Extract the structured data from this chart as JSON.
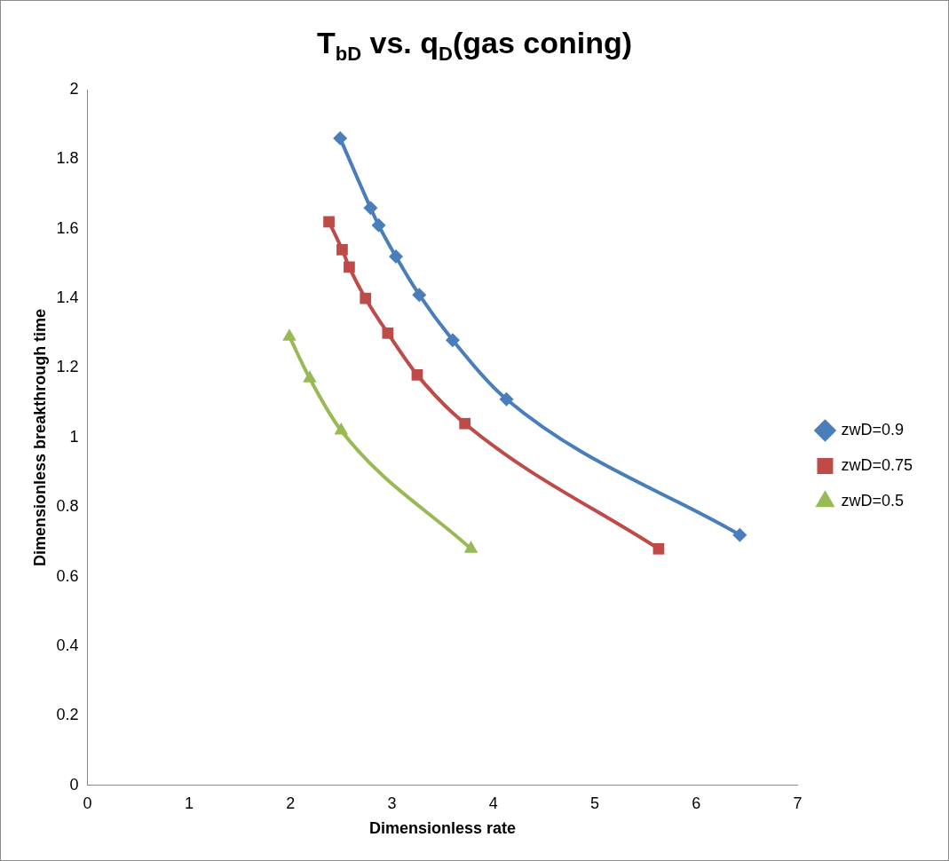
{
  "chart_data": {
    "type": "line",
    "title": "T$_{bD}$ vs. q$_{D}$(gas coning)",
    "xlabel": "Dimensionless rate",
    "ylabel": "Dimensionless breakthrough time",
    "xlim": [
      0,
      7
    ],
    "xticks": [
      0,
      1,
      2,
      3,
      4,
      5,
      6,
      7
    ],
    "ylim": [
      0,
      2
    ],
    "yticks": [
      0,
      0.2,
      0.4,
      0.6,
      0.8,
      1,
      1.2,
      1.4,
      1.6,
      1.8,
      2
    ],
    "grid": false,
    "legend": "right",
    "series": [
      {
        "name": "zwD=0.9",
        "color": "#4a7ebb",
        "marker": "diamond",
        "x": [
          2.49,
          2.79,
          2.87,
          3.04,
          3.27,
          3.6,
          4.13,
          6.43
        ],
        "values": [
          1.86,
          1.66,
          1.61,
          1.52,
          1.41,
          1.28,
          1.11,
          0.72
        ]
      },
      {
        "name": "zwD=0.75",
        "color": "#be4b48",
        "marker": "square",
        "x": [
          2.38,
          2.51,
          2.58,
          2.74,
          2.96,
          3.25,
          3.72,
          5.63
        ],
        "values": [
          1.62,
          1.54,
          1.49,
          1.4,
          1.3,
          1.18,
          1.04,
          0.68
        ]
      },
      {
        "name": "zwD=0.5",
        "color": "#98b954",
        "marker": "triangle",
        "x": [
          1.99,
          2.19,
          2.5,
          3.78
        ],
        "values": [
          1.29,
          1.17,
          1.02,
          0.68
        ]
      }
    ]
  }
}
